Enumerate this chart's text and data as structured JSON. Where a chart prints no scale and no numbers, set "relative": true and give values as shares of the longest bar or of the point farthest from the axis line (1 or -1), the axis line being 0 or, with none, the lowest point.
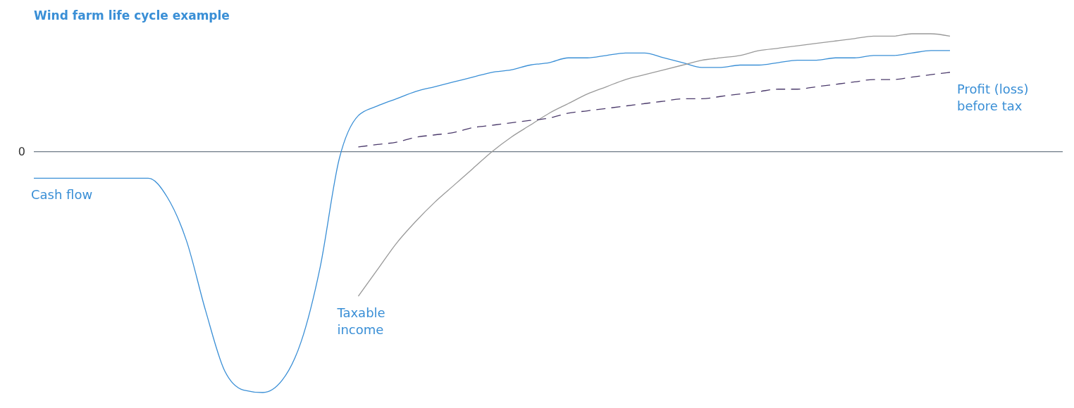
{
  "chart_data": {
    "type": "line",
    "title": "Wind farm life cycle example",
    "relative": true,
    "annotations": [
      "0"
    ],
    "categories": [
      null,
      null,
      null,
      null,
      null,
      null,
      null,
      null,
      null,
      null,
      null,
      null,
      null,
      null,
      null,
      null,
      null,
      null,
      null,
      null,
      null,
      null,
      null,
      null,
      null,
      null,
      null,
      null,
      null,
      null,
      null,
      null,
      null,
      null,
      null,
      null,
      null,
      null,
      null,
      null,
      null,
      null,
      null,
      null,
      null,
      null,
      null,
      null,
      null
    ],
    "marker": "none",
    "series": [
      {
        "name": "Cash flow",
        "color": "#3a8fd6",
        "line_style": "solid",
        "values": [
          -0.11,
          -0.11,
          -0.11,
          -0.11,
          -0.11,
          -0.11,
          -0.11,
          -0.19,
          -0.37,
          -0.66,
          -0.91,
          -0.99,
          -1,
          -0.95,
          -0.79,
          -0.48,
          -0.03,
          0.15,
          0.19,
          0.22,
          0.25,
          0.27,
          0.29,
          0.31,
          0.33,
          0.34,
          0.36,
          0.37,
          0.39,
          0.39,
          0.4,
          0.41,
          0.41,
          0.39,
          0.37,
          0.35,
          0.35,
          0.36,
          0.36,
          0.37,
          0.38,
          0.38,
          0.39,
          0.39,
          0.4,
          0.4,
          0.41,
          0.42,
          0.42
        ]
      },
      {
        "name": "Taxable income",
        "color": "#999999",
        "line_style": "solid",
        "values": [
          null,
          null,
          null,
          null,
          null,
          null,
          null,
          null,
          null,
          null,
          null,
          null,
          null,
          null,
          null,
          null,
          null,
          -0.6,
          -0.49,
          -0.38,
          -0.29,
          -0.21,
          -0.14,
          -0.07,
          0,
          0.06,
          0.11,
          0.16,
          0.2,
          0.24,
          0.27,
          0.3,
          0.32,
          0.34,
          0.36,
          0.38,
          0.39,
          0.4,
          0.42,
          0.43,
          0.44,
          0.45,
          0.46,
          0.47,
          0.48,
          0.48,
          0.49,
          0.49,
          0.48
        ]
      },
      {
        "name": "Profit (loss) before tax",
        "color": "#4b3a6b",
        "line_style": "dashed",
        "values": [
          null,
          null,
          null,
          null,
          null,
          null,
          null,
          null,
          null,
          null,
          null,
          null,
          null,
          null,
          null,
          null,
          null,
          0.02,
          0.03,
          0.04,
          0.06,
          0.07,
          0.08,
          0.1,
          0.11,
          0.12,
          0.13,
          0.14,
          0.16,
          0.17,
          0.18,
          0.19,
          0.2,
          0.21,
          0.22,
          0.22,
          0.23,
          0.24,
          0.25,
          0.26,
          0.26,
          0.27,
          0.28,
          0.29,
          0.3,
          0.3,
          0.31,
          0.32,
          0.33
        ]
      }
    ]
  }
}
